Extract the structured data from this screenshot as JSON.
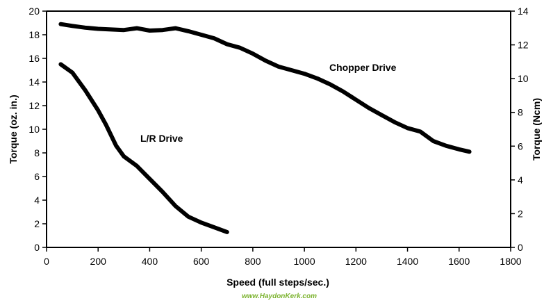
{
  "chart_data": {
    "type": "line",
    "xlabel": "Speed (full steps/sec.)",
    "ylabel_left": "Torque (oz. in.)",
    "ylabel_right": "Torque (Ncm)",
    "xlim": [
      0,
      1800
    ],
    "ylim_left": [
      0,
      20
    ],
    "ylim_right": [
      0,
      14
    ],
    "xticks": [
      0,
      200,
      400,
      600,
      800,
      1000,
      1200,
      1400,
      1600,
      1800
    ],
    "yticks_left": [
      0,
      2,
      4,
      6,
      8,
      10,
      12,
      14,
      16,
      18,
      20
    ],
    "yticks_right": [
      0,
      2,
      4,
      6,
      8,
      10,
      12,
      14
    ],
    "grid": false,
    "series": [
      {
        "name": "Chopper Drive",
        "x": [
          55,
          100,
          150,
          200,
          250,
          300,
          350,
          400,
          450,
          500,
          550,
          600,
          650,
          700,
          750,
          800,
          850,
          900,
          950,
          1000,
          1050,
          1100,
          1150,
          1200,
          1250,
          1300,
          1350,
          1400,
          1450,
          1500,
          1550,
          1600,
          1640
        ],
        "values": [
          18.9,
          18.75,
          18.6,
          18.5,
          18.45,
          18.4,
          18.55,
          18.35,
          18.4,
          18.55,
          18.3,
          18.0,
          17.7,
          17.2,
          16.9,
          16.4,
          15.8,
          15.3,
          15.0,
          14.7,
          14.3,
          13.8,
          13.2,
          12.5,
          11.8,
          11.2,
          10.6,
          10.1,
          9.8,
          9.0,
          8.6,
          8.3,
          8.1
        ]
      },
      {
        "name": "L/R Drive",
        "x": [
          55,
          100,
          150,
          200,
          230,
          270,
          300,
          350,
          400,
          450,
          500,
          550,
          600,
          650,
          700
        ],
        "values": [
          15.5,
          14.8,
          13.3,
          11.6,
          10.4,
          8.6,
          7.7,
          6.9,
          5.8,
          4.7,
          3.5,
          2.6,
          2.1,
          1.7,
          1.3
        ]
      }
    ],
    "annotations": [
      "Chopper Drive",
      "L/R Drive"
    ]
  },
  "footer": {
    "url_text": "www.HaydonKerk.com",
    "url_color": "#7cb32f"
  }
}
